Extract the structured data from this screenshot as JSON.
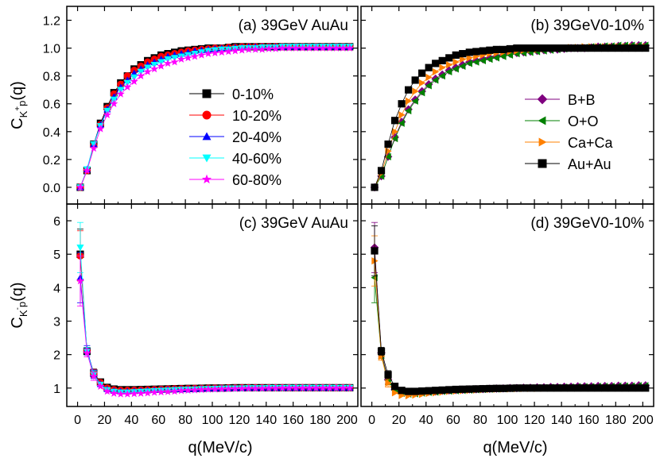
{
  "chart_data": {
    "type": "scatter",
    "x_label": "q(MeV/c)",
    "x_ticks": [
      0,
      20,
      40,
      60,
      80,
      100,
      120,
      140,
      160,
      180,
      200
    ],
    "xlim": [
      -8,
      208
    ],
    "rows": [
      {
        "ylabel_main": "C",
        "ylabel_sub": "K",
        "ylabel_sup": "+",
        "ylabel_sub2": "p",
        "ylabel_tail": "(q)",
        "ylim": [
          -0.12,
          1.3
        ],
        "y_ticks": [
          "0.0",
          "0.2",
          "0.4",
          "0.6",
          "0.8",
          "1.0",
          "1.2"
        ]
      },
      {
        "ylabel_main": "C",
        "ylabel_sub": "K",
        "ylabel_sup": "-",
        "ylabel_sub2": "p",
        "ylabel_tail": "(q)",
        "ylim": [
          0.45,
          6.5
        ],
        "y_ticks": [
          "1",
          "2",
          "3",
          "4",
          "5",
          "6"
        ]
      }
    ],
    "panels": [
      {
        "id": "a",
        "label": "(a) 39GeV AuAu",
        "row": 0,
        "col": 0,
        "series": [
          {
            "name": "0-10%",
            "color": "#000000",
            "marker": "square",
            "values": [
              0.0,
              0.12,
              0.31,
              0.46,
              0.58,
              0.68,
              0.75,
              0.8,
              0.85,
              0.88,
              0.91,
              0.93,
              0.95,
              0.96,
              0.97,
              0.98,
              0.985,
              0.99,
              0.995,
              1.0,
              1.0,
              1.0,
              1.005,
              1.01,
              1.01,
              1.01,
              1.01,
              1.01,
              1.01,
              1.01,
              1.01,
              1.01,
              1.01,
              1.01,
              1.01,
              1.01,
              1.01,
              1.01,
              1.01,
              1.01,
              1.01
            ]
          },
          {
            "name": "10-20%",
            "color": "#ff0000",
            "marker": "circle",
            "values": [
              0.0,
              0.12,
              0.3,
              0.45,
              0.57,
              0.67,
              0.74,
              0.8,
              0.84,
              0.87,
              0.9,
              0.92,
              0.94,
              0.95,
              0.96,
              0.97,
              0.98,
              0.985,
              0.99,
              0.995,
              1.0,
              1.0,
              1.005,
              1.005,
              1.01,
              1.01,
              1.01,
              1.01,
              1.01,
              1.01,
              1.01,
              1.01,
              1.01,
              1.01,
              1.01,
              1.01,
              1.01,
              1.01,
              1.01,
              1.01,
              1.01
            ]
          },
          {
            "name": "20-40%",
            "color": "#0000ff",
            "marker": "triangle-up",
            "values": [
              0.0,
              0.13,
              0.31,
              0.45,
              0.56,
              0.65,
              0.72,
              0.77,
              0.82,
              0.85,
              0.88,
              0.9,
              0.92,
              0.94,
              0.95,
              0.96,
              0.97,
              0.98,
              0.985,
              0.99,
              0.995,
              1.0,
              1.0,
              1.005,
              1.005,
              1.01,
              1.01,
              1.01,
              1.01,
              1.01,
              1.01,
              1.01,
              1.01,
              1.01,
              1.01,
              1.01,
              1.01,
              1.01,
              1.01,
              1.01,
              1.01
            ]
          },
          {
            "name": "40-60%",
            "color": "#00ffff",
            "marker": "triangle-down",
            "values": [
              0.0,
              0.13,
              0.31,
              0.44,
              0.55,
              0.63,
              0.7,
              0.75,
              0.79,
              0.83,
              0.86,
              0.88,
              0.9,
              0.92,
              0.93,
              0.94,
              0.95,
              0.96,
              0.97,
              0.98,
              0.985,
              0.99,
              0.99,
              0.995,
              1.0,
              1.0,
              1.0,
              1.005,
              1.005,
              1.005,
              1.01,
              1.01,
              1.01,
              1.01,
              1.01,
              1.01,
              1.01,
              1.01,
              1.01,
              1.01,
              1.01
            ]
          },
          {
            "name": "60-80%",
            "color": "#ff00ff",
            "marker": "star",
            "values": [
              0.0,
              0.12,
              0.28,
              0.42,
              0.52,
              0.6,
              0.67,
              0.72,
              0.76,
              0.8,
              0.83,
              0.85,
              0.87,
              0.89,
              0.9,
              0.92,
              0.93,
              0.94,
              0.95,
              0.96,
              0.965,
              0.97,
              0.975,
              0.98,
              0.985,
              0.99,
              0.99,
              0.99,
              0.995,
              0.995,
              1.0,
              1.0,
              1.0,
              1.0,
              1.0,
              1.0,
              1.0,
              1.0,
              1.0,
              1.0,
              1.0
            ]
          }
        ],
        "legend": {
          "position": "center"
        }
      },
      {
        "id": "b",
        "label": "(b) 39GeV0-10%",
        "row": 0,
        "col": 1,
        "series": [
          {
            "name": "B+B",
            "color": "#7f007f",
            "marker": "diamond",
            "values": [
              0.0,
              0.08,
              0.22,
              0.36,
              0.47,
              0.56,
              0.63,
              0.69,
              0.74,
              0.78,
              0.81,
              0.84,
              0.86,
              0.88,
              0.9,
              0.91,
              0.92,
              0.93,
              0.94,
              0.95,
              0.96,
              0.965,
              0.97,
              0.975,
              0.98,
              0.985,
              0.99,
              0.99,
              0.995,
              1.0,
              1.0,
              1.0,
              1.005,
              1.01,
              1.01,
              1.01,
              1.015,
              1.015,
              1.02,
              1.02,
              1.02
            ]
          },
          {
            "name": "O+O",
            "color": "#008000",
            "marker": "triangle-left",
            "values": [
              0.0,
              0.08,
              0.22,
              0.35,
              0.46,
              0.55,
              0.62,
              0.68,
              0.73,
              0.77,
              0.8,
              0.83,
              0.85,
              0.87,
              0.89,
              0.9,
              0.91,
              0.92,
              0.93,
              0.94,
              0.95,
              0.96,
              0.965,
              0.97,
              0.975,
              0.98,
              0.985,
              0.99,
              0.995,
              1.0,
              1.0,
              1.005,
              1.01,
              1.01,
              1.015,
              1.015,
              1.02,
              1.02,
              1.02,
              1.02,
              1.02
            ]
          },
          {
            "name": "Ca+Ca",
            "color": "#ff8000",
            "marker": "triangle-right",
            "values": [
              0.0,
              0.1,
              0.26,
              0.4,
              0.52,
              0.62,
              0.69,
              0.75,
              0.79,
              0.83,
              0.86,
              0.88,
              0.9,
              0.92,
              0.93,
              0.94,
              0.95,
              0.96,
              0.965,
              0.97,
              0.975,
              0.98,
              0.985,
              0.99,
              0.99,
              0.995,
              1.0,
              1.0,
              1.0,
              1.005,
              1.005,
              1.01,
              1.01,
              1.01,
              1.01,
              1.01,
              1.01,
              1.01,
              1.01,
              1.01,
              1.01
            ]
          },
          {
            "name": "Au+Au",
            "color": "#000000",
            "marker": "square",
            "values": [
              0.0,
              0.12,
              0.31,
              0.48,
              0.6,
              0.7,
              0.77,
              0.82,
              0.86,
              0.89,
              0.91,
              0.93,
              0.95,
              0.96,
              0.97,
              0.975,
              0.98,
              0.985,
              0.99,
              0.99,
              0.995,
              1.0,
              1.0,
              1.0,
              1.0,
              1.0,
              1.0,
              1.0,
              1.0,
              1.0,
              1.0,
              1.0,
              1.0,
              1.0,
              1.0,
              1.0,
              1.0,
              1.0,
              1.0,
              1.0,
              1.0
            ]
          }
        ],
        "legend": {
          "position": "center-right"
        }
      },
      {
        "id": "c",
        "label": "(c) 39GeV AuAu",
        "row": 1,
        "col": 0,
        "series": [
          {
            "name": "0-10%",
            "color": "#000000",
            "marker": "square",
            "values": [
              5.0,
              2.1,
              1.45,
              1.18,
              1.02,
              0.97,
              0.95,
              0.95,
              0.95,
              0.955,
              0.96,
              0.965,
              0.97,
              0.975,
              0.98,
              0.985,
              0.99,
              0.99,
              0.995,
              1.0,
              1.0,
              1.0,
              1.005,
              1.01,
              1.01,
              1.01,
              1.01,
              1.01,
              1.01,
              1.01,
              1.01,
              1.01,
              1.01,
              1.01,
              1.01,
              1.01,
              1.01,
              1.01,
              1.01,
              1.01,
              1.01
            ]
          },
          {
            "name": "10-20%",
            "color": "#ff0000",
            "marker": "circle",
            "values": [
              4.95,
              2.1,
              1.44,
              1.16,
              1.0,
              0.95,
              0.93,
              0.93,
              0.935,
              0.94,
              0.95,
              0.955,
              0.96,
              0.97,
              0.975,
              0.98,
              0.985,
              0.99,
              0.99,
              0.995,
              1.0,
              1.0,
              1.005,
              1.005,
              1.01,
              1.01,
              1.01,
              1.01,
              1.01,
              1.01,
              1.01,
              1.01,
              1.01,
              1.01,
              1.01,
              1.01,
              1.01,
              1.01,
              1.01,
              1.01,
              1.01
            ]
          },
          {
            "name": "20-40%",
            "color": "#0000ff",
            "marker": "triangle-up",
            "values": [
              4.3,
              2.15,
              1.42,
              1.12,
              0.97,
              0.92,
              0.9,
              0.9,
              0.91,
              0.92,
              0.93,
              0.94,
              0.95,
              0.96,
              0.965,
              0.97,
              0.975,
              0.98,
              0.985,
              0.99,
              0.995,
              1.0,
              1.0,
              1.005,
              1.005,
              1.01,
              1.01,
              1.01,
              1.01,
              1.01,
              1.01,
              1.01,
              1.01,
              1.01,
              1.01,
              1.01,
              1.01,
              1.01,
              1.01,
              1.01,
              1.01
            ]
          },
          {
            "name": "40-60%",
            "color": "#00ffff",
            "marker": "triangle-down",
            "values": [
              5.2,
              2.1,
              1.4,
              1.1,
              0.94,
              0.89,
              0.87,
              0.87,
              0.88,
              0.89,
              0.9,
              0.91,
              0.92,
              0.93,
              0.94,
              0.95,
              0.955,
              0.96,
              0.97,
              0.975,
              0.98,
              0.985,
              0.99,
              0.99,
              0.995,
              1.0,
              1.0,
              1.0,
              1.005,
              1.005,
              1.005,
              1.01,
              1.01,
              1.01,
              1.01,
              1.01,
              1.01,
              1.01,
              1.01,
              1.01,
              1.01
            ]
          },
          {
            "name": "60-80%",
            "color": "#ff00ff",
            "marker": "star",
            "values": [
              4.2,
              2.05,
              1.35,
              1.05,
              0.9,
              0.84,
              0.82,
              0.82,
              0.83,
              0.84,
              0.85,
              0.87,
              0.88,
              0.89,
              0.9,
              0.92,
              0.93,
              0.94,
              0.95,
              0.96,
              0.965,
              0.97,
              0.975,
              0.98,
              0.985,
              0.99,
              0.99,
              0.99,
              0.995,
              0.995,
              1.0,
              1.0,
              1.0,
              1.0,
              1.0,
              1.0,
              1.0,
              1.0,
              1.0,
              1.0,
              1.0
            ]
          }
        ]
      },
      {
        "id": "d",
        "label": "(d) 39GeV0-10%",
        "row": 1,
        "col": 1,
        "series": [
          {
            "name": "B+B",
            "color": "#7f007f",
            "marker": "diamond",
            "values": [
              5.2,
              2.05,
              1.25,
              0.95,
              0.86,
              0.84,
              0.85,
              0.87,
              0.89,
              0.9,
              0.92,
              0.93,
              0.94,
              0.95,
              0.96,
              0.965,
              0.97,
              0.98,
              0.985,
              0.99,
              1.0,
              1.0,
              1.01,
              1.01,
              1.02,
              1.02,
              1.03,
              1.03,
              1.04,
              1.04,
              1.05,
              1.05,
              1.05,
              1.06,
              1.06,
              1.06,
              1.07,
              1.07,
              1.07,
              1.08,
              1.08
            ]
          },
          {
            "name": "O+O",
            "color": "#008000",
            "marker": "triangle-left",
            "values": [
              4.3,
              2.0,
              1.22,
              0.93,
              0.84,
              0.82,
              0.83,
              0.85,
              0.87,
              0.88,
              0.9,
              0.91,
              0.92,
              0.93,
              0.94,
              0.95,
              0.96,
              0.965,
              0.97,
              0.98,
              0.985,
              0.99,
              1.0,
              1.0,
              1.01,
              1.01,
              1.02,
              1.02,
              1.03,
              1.03,
              1.04,
              1.04,
              1.04,
              1.05,
              1.05,
              1.05,
              1.06,
              1.06,
              1.06,
              1.07,
              1.07
            ]
          },
          {
            "name": "Ca+Ca",
            "color": "#ff8000",
            "marker": "triangle-right",
            "values": [
              4.8,
              1.95,
              1.15,
              0.86,
              0.78,
              0.77,
              0.79,
              0.81,
              0.84,
              0.86,
              0.88,
              0.9,
              0.91,
              0.92,
              0.93,
              0.94,
              0.95,
              0.96,
              0.965,
              0.97,
              0.975,
              0.98,
              0.985,
              0.99,
              0.99,
              0.995,
              1.0,
              1.0,
              1.0,
              1.005,
              1.005,
              1.01,
              1.01,
              1.01,
              1.01,
              1.01,
              1.01,
              1.01,
              1.01,
              1.01,
              1.01
            ]
          },
          {
            "name": "Au+Au",
            "color": "#000000",
            "marker": "square",
            "values": [
              5.1,
              2.1,
              1.4,
              1.05,
              0.93,
              0.9,
              0.9,
              0.91,
              0.92,
              0.93,
              0.94,
              0.95,
              0.96,
              0.965,
              0.97,
              0.975,
              0.98,
              0.985,
              0.99,
              0.99,
              0.995,
              1.0,
              1.0,
              1.0,
              1.0,
              1.0,
              1.0,
              1.0,
              1.0,
              1.0,
              1.0,
              1.0,
              1.0,
              1.0,
              1.0,
              1.0,
              1.0,
              1.0,
              1.0,
              1.0,
              1.0
            ]
          }
        ]
      }
    ],
    "x_values_note": "series values are sampled at q = 2, 7, 12, ... every 5 MeV/c up to 202"
  }
}
